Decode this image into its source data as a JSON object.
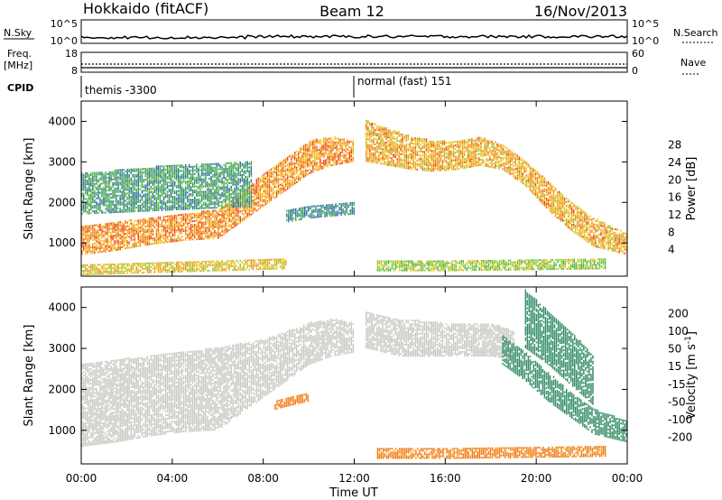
{
  "header": {
    "station": "Hokkaido (fitACF)",
    "beam": "Beam 12",
    "date": "16/Nov/2013"
  },
  "aux_panels": {
    "nsky_label": "N.Sky",
    "nsearch_label": "N.Search",
    "freq_label": "Freq.",
    "freq_unit": "[MHz]",
    "nave_label": "Nave",
    "cpid_label": "CPID",
    "nsky_ticks": [
      "10^5",
      "10^0"
    ],
    "nsearch_ticks": [
      "10^5",
      "10^0"
    ],
    "freq_ticks": [
      "18",
      "8"
    ],
    "nave_ticks": [
      "60",
      "0"
    ],
    "cpid_segments": [
      {
        "label": "themis -3300",
        "start_hour": 0
      },
      {
        "label": "normal (fast) 151",
        "start_hour": 12.0
      }
    ]
  },
  "chart_data": [
    {
      "type": "heatmap",
      "name": "Power",
      "ylabel": "Slant Range [km]",
      "xlabel": "Time UT",
      "x_ticks": [
        "00:00",
        "04:00",
        "08:00",
        "12:00",
        "16:00",
        "20:00",
        "00:00"
      ],
      "xlim_hours": [
        0,
        24
      ],
      "y_ticks": [
        1000,
        2000,
        3000,
        4000
      ],
      "ylim": [
        180,
        4500
      ],
      "colorbar": {
        "label": "Power [dB]",
        "ticks": [
          "4",
          "8",
          "12",
          "16",
          "20",
          "24",
          "28"
        ],
        "colors": [
          "#1a2bff",
          "#2b55c9",
          "#2e7f7a",
          "#3fae4a",
          "#8ccc2e",
          "#f0c21a",
          "#f08a10",
          "#f03c0c",
          "#e80000"
        ]
      },
      "echo_bands": [
        {
          "t": [
            0,
            1.5,
            3,
            4.5,
            6,
            7,
            8,
            9,
            10,
            11,
            12
          ],
          "lo": [
            700,
            800,
            950,
            1050,
            1100,
            1500,
            1900,
            2300,
            2700,
            2900,
            3000
          ],
          "hi": [
            1400,
            1500,
            1600,
            1700,
            1800,
            2200,
            2700,
            3100,
            3500,
            3600,
            3500
          ],
          "level": 26
        },
        {
          "t": [
            12.5,
            13.5,
            14.5,
            15.5,
            16.5,
            17.5,
            18.5,
            19.5,
            20.5,
            21.5,
            22.5,
            24
          ],
          "lo": [
            3000,
            2900,
            2800,
            2750,
            2800,
            2900,
            2800,
            2400,
            1800,
            1300,
            900,
            700
          ],
          "hi": [
            4000,
            3800,
            3600,
            3500,
            3500,
            3600,
            3400,
            3000,
            2500,
            2000,
            1600,
            1200
          ],
          "level": 24
        },
        {
          "t": [
            0,
            2,
            4,
            6,
            7.5
          ],
          "lo": [
            1700,
            1750,
            1800,
            1850,
            1900
          ],
          "hi": [
            2700,
            2800,
            2900,
            2950,
            3000
          ],
          "level": 12
        },
        {
          "t": [
            9,
            10,
            11,
            12
          ],
          "lo": [
            1500,
            1600,
            1650,
            1700
          ],
          "hi": [
            1800,
            1900,
            1950,
            2000
          ],
          "level": 10
        },
        {
          "t": [
            0,
            3,
            6,
            9
          ],
          "lo": [
            200,
            250,
            300,
            350
          ],
          "hi": [
            450,
            500,
            550,
            600
          ],
          "level": 22
        },
        {
          "t": [
            13,
            16,
            19,
            23
          ],
          "lo": [
            300,
            300,
            320,
            350
          ],
          "hi": [
            550,
            560,
            580,
            600
          ],
          "level": 18
        }
      ]
    },
    {
      "type": "heatmap",
      "name": "Velocity",
      "ylabel": "Slant Range [km]",
      "xlabel": "Time UT",
      "x_ticks": [
        "00:00",
        "04:00",
        "08:00",
        "12:00",
        "16:00",
        "20:00",
        "00:00"
      ],
      "xlim_hours": [
        0,
        24
      ],
      "y_ticks": [
        1000,
        2000,
        3000,
        4000
      ],
      "ylim": [
        180,
        4500
      ],
      "colorbar": {
        "label": "Velocity [m s^-1]",
        "ticks": [
          "200",
          "100",
          "50",
          "15",
          "-15",
          "-50",
          "-100",
          "-200"
        ],
        "colors": [
          "#1a2bcf",
          "#1e5aa6",
          "#2e8a62",
          "#7ccf2a",
          "#c8c8c0",
          "#f0b020",
          "#f07a10",
          "#f03a0a",
          "#e00000"
        ]
      },
      "echo_bands": [
        {
          "t": [
            0,
            1.5,
            3,
            4.5,
            6,
            7,
            8,
            9,
            10,
            11,
            12
          ],
          "lo": [
            600,
            700,
            850,
            950,
            1000,
            1400,
            1800,
            2200,
            2600,
            2800,
            2900
          ],
          "hi": [
            2600,
            2700,
            2800,
            2900,
            3000,
            3100,
            3200,
            3400,
            3600,
            3700,
            3600
          ],
          "level": 0
        },
        {
          "t": [
            12.5,
            14,
            16,
            18,
            19
          ],
          "lo": [
            3000,
            2800,
            2800,
            2800,
            2700
          ],
          "hi": [
            3900,
            3700,
            3600,
            3600,
            3400
          ],
          "level": 0
        },
        {
          "t": [
            18.5,
            19.5,
            20.5,
            21.5,
            22.5,
            24
          ],
          "lo": [
            2600,
            2200,
            1700,
            1300,
            900,
            700
          ],
          "hi": [
            3300,
            2900,
            2400,
            1900,
            1500,
            1200
          ],
          "level": 60
        },
        {
          "t": [
            19.5,
            20.5,
            21.5,
            22.5
          ],
          "lo": [
            3000,
            2600,
            2100,
            1600
          ],
          "hi": [
            4400,
            3900,
            3400,
            2800
          ],
          "level": 60
        },
        {
          "t": [
            8.5,
            9.2,
            10
          ],
          "lo": [
            1500,
            1600,
            1700
          ],
          "hi": [
            1700,
            1800,
            1900
          ],
          "level": -60
        },
        {
          "t": [
            13,
            16,
            19,
            23
          ],
          "lo": [
            300,
            300,
            320,
            350
          ],
          "hi": [
            550,
            560,
            580,
            600
          ],
          "level": -40
        }
      ]
    }
  ]
}
